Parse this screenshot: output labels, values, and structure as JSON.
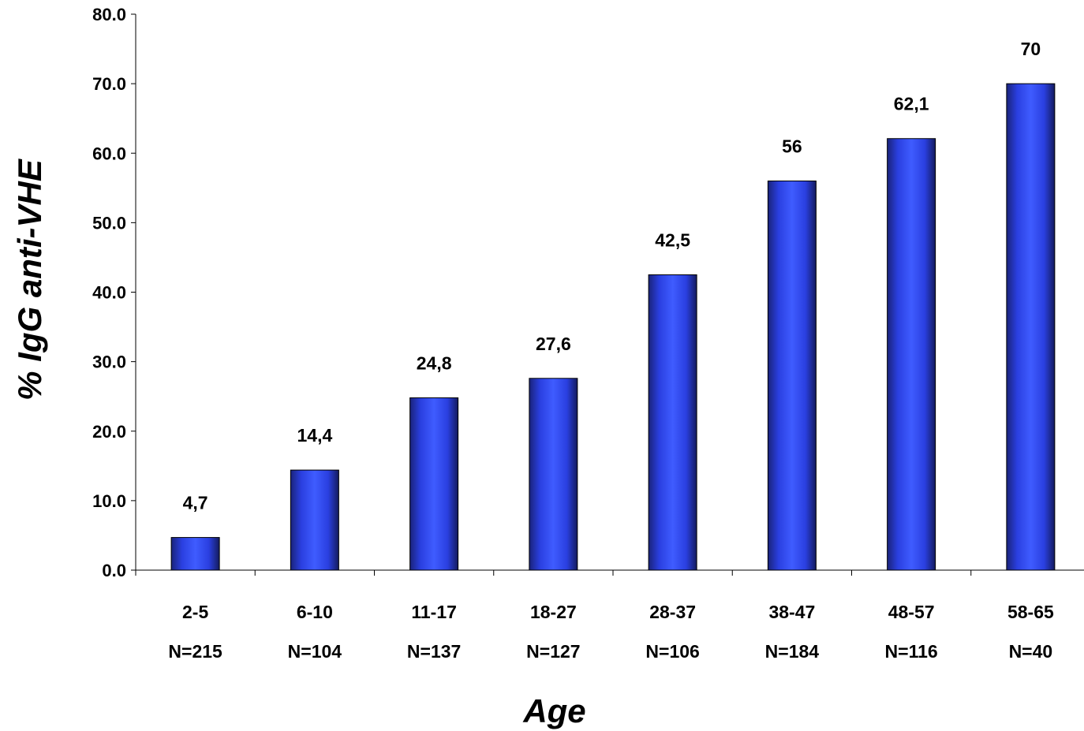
{
  "chart_data": {
    "type": "bar",
    "title": "",
    "xlabel": "Age",
    "ylabel": "% IgG anti-VHE",
    "ylim": [
      0,
      80
    ],
    "yticks": [
      "0.0",
      "10.0",
      "20.0",
      "30.0",
      "40.0",
      "50.0",
      "60.0",
      "70.0",
      "80.0"
    ],
    "categories": [
      "2-5",
      "6-10",
      "11-17",
      "18-27",
      "28-37",
      "38-47",
      "48-57",
      "58-65"
    ],
    "sample_sizes": [
      "N=215",
      "N=104",
      "N=137",
      "N=127",
      "N=106",
      "N=184",
      "N=116",
      "N=40"
    ],
    "values": [
      4.7,
      14.4,
      24.8,
      27.6,
      42.5,
      56,
      62.1,
      70
    ],
    "value_labels": [
      "4,7",
      "14,4",
      "24,8",
      "27,6",
      "42,5",
      "56",
      "62,1",
      "70"
    ],
    "bar_color": "#2a3fe0",
    "grid": false,
    "legend": "none"
  }
}
